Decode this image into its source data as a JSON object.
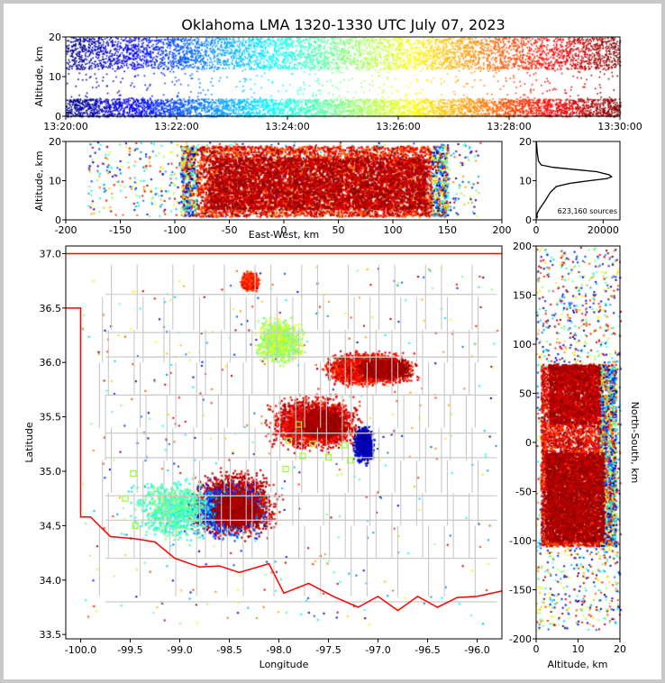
{
  "title": "Oklahoma LMA 1320-1330 UTC July 07, 2023",
  "panels": {
    "time": {
      "ylabel": "Altitude, km",
      "yticks": [
        "0",
        "10",
        "20"
      ],
      "xticks": [
        "13:20:00",
        "13:22:00",
        "13:24:00",
        "13:26:00",
        "13:28:00",
        "13:30:00"
      ]
    },
    "ew": {
      "xlabel": "East-West, km",
      "ylabel": "Altitude, km",
      "xticks": [
        "-200",
        "-150",
        "-100",
        "-50",
        "0",
        "50",
        "100",
        "150",
        "200"
      ],
      "yticks": [
        "0",
        "10",
        "20"
      ]
    },
    "hist": {
      "xticks": [
        "0",
        "20000"
      ],
      "yticks": [
        "0",
        "10",
        "20"
      ],
      "count_label": "623,160 sources"
    },
    "map": {
      "xlabel": "Longitude",
      "ylabel": "Latitude",
      "xticks": [
        "-100.0",
        "-99.5",
        "-99.0",
        "-98.5",
        "-98.0",
        "-97.5",
        "-97.0",
        "-96.5",
        "-96.0"
      ],
      "yticks": [
        "33.5",
        "34.0",
        "34.5",
        "35.0",
        "35.5",
        "36.0",
        "36.5",
        "37.0"
      ]
    },
    "ns": {
      "xlabel": "Altitude, km",
      "ylabel": "North-South, km",
      "xticks": [
        "0",
        "10",
        "20"
      ],
      "yticks": [
        "-200",
        "-150",
        "-100",
        "-50",
        "0",
        "50",
        "100",
        "150",
        "200"
      ]
    }
  },
  "colors": {
    "state_border": "#ff0000",
    "county_lines": "#c8c8c8",
    "station_marker": "#99ff33",
    "colormap": "jet"
  },
  "chart_data": [
    {
      "type": "scatter",
      "name_ref": "time-height",
      "xlabel": "",
      "ylabel": "Altitude, km",
      "xlim": [
        "13:20:00",
        "13:30:00"
      ],
      "ylim": [
        0,
        20
      ],
      "color_by": "time",
      "colormap": "jet",
      "grid": true,
      "density": "uniform over time; dense below 4 km and above 12 km, sparse near 8 km"
    },
    {
      "type": "scatter",
      "name_ref": "east-west-height",
      "xlabel": "East-West, km",
      "ylabel": "Altitude, km",
      "xlim": [
        -200,
        200
      ],
      "ylim": [
        0,
        20
      ],
      "color_by": "time",
      "colormap": "jet",
      "clusters": [
        {
          "x_range": [
            -95,
            150
          ],
          "y_range": [
            1,
            19
          ],
          "density": "very high"
        },
        {
          "x_range": [
            -200,
            -95
          ],
          "y_range": [
            1,
            20
          ],
          "density": "low"
        },
        {
          "x_range": [
            150,
            190
          ],
          "y_range": [
            2,
            20
          ],
          "density": "low"
        }
      ]
    },
    {
      "type": "line",
      "name_ref": "altitude-histogram",
      "xlabel": "",
      "ylabel": "",
      "xlim": [
        0,
        25000
      ],
      "ylim": [
        0,
        20
      ],
      "points": [
        [
          60,
          20
        ],
        [
          150,
          19
        ],
        [
          350,
          17
        ],
        [
          700,
          15
        ],
        [
          1500,
          14
        ],
        [
          5000,
          13.4
        ],
        [
          12000,
          12.8
        ],
        [
          18000,
          12.3
        ],
        [
          21800,
          11.5
        ],
        [
          22500,
          11
        ],
        [
          21000,
          10.5
        ],
        [
          16000,
          10
        ],
        [
          10000,
          9.3
        ],
        [
          6000,
          8.5
        ],
        [
          4200,
          7
        ],
        [
          3500,
          6
        ],
        [
          2800,
          5
        ],
        [
          2000,
          4
        ],
        [
          1200,
          3
        ],
        [
          500,
          2
        ],
        [
          200,
          1.2
        ],
        [
          350,
          0.8
        ],
        [
          150,
          0.4
        ]
      ],
      "annotation": "623,160 sources"
    },
    {
      "type": "scatter",
      "name_ref": "plan-view-map",
      "xlabel": "Longitude",
      "ylabel": "Latitude",
      "xlim": [
        -100.15,
        -95.75
      ],
      "ylim": [
        33.46,
        37.07
      ],
      "color_by": "time",
      "colormap": "jet",
      "clusters": [
        {
          "lon": -98.45,
          "lat": 34.7,
          "lon_spread": 0.5,
          "lat_spread": 0.35,
          "time": 0.95
        },
        {
          "lon": -97.65,
          "lat": 35.45,
          "lon_spread": 0.55,
          "lat_spread": 0.3,
          "time": 0.9
        },
        {
          "lon": -97.1,
          "lat": 35.95,
          "lon_spread": 0.55,
          "lat_spread": 0.18,
          "time": 0.88
        },
        {
          "lon": -98.55,
          "lat": 34.65,
          "lon_spread": 0.5,
          "lat_spread": 0.3,
          "time": 0.2
        },
        {
          "lon": -99.05,
          "lat": 34.65,
          "lon_spread": 0.5,
          "lat_spread": 0.35,
          "time": 0.45
        },
        {
          "lon": -98.0,
          "lat": 36.2,
          "lon_spread": 0.3,
          "lat_spread": 0.25,
          "time": 0.55
        },
        {
          "lon": -98.3,
          "lat": 36.75,
          "lon_spread": 0.1,
          "lat_spread": 0.1,
          "time": 0.85
        },
        {
          "lon": -97.15,
          "lat": 35.25,
          "lon_spread": 0.12,
          "lat_spread": 0.2,
          "time": 0.05
        }
      ],
      "stations": [
        [
          -99.47,
          34.98
        ],
        [
          -99.55,
          34.75
        ],
        [
          -99.45,
          34.5
        ],
        [
          -97.9,
          35.28
        ],
        [
          -97.93,
          35.02
        ],
        [
          -97.76,
          35.14
        ],
        [
          -97.66,
          35.25
        ],
        [
          -97.5,
          35.13
        ],
        [
          -97.34,
          35.24
        ],
        [
          -97.28,
          35.1
        ],
        [
          -97.8,
          35.43
        ]
      ]
    },
    {
      "type": "scatter",
      "name_ref": "north-south-height",
      "xlabel": "Altitude, km",
      "ylabel": "North-South, km",
      "xlim": [
        0,
        20
      ],
      "ylim": [
        -200,
        200
      ],
      "color_by": "time",
      "colormap": "jet",
      "clusters": [
        {
          "y_range": [
            -105,
            80
          ],
          "x_range": [
            0,
            20
          ],
          "density": "very high"
        },
        {
          "y_range": [
            80,
            200
          ],
          "x_range": [
            0,
            20
          ],
          "density": "moderate"
        },
        {
          "y_range": [
            -190,
            -105
          ],
          "x_range": [
            0,
            20
          ],
          "density": "low"
        }
      ]
    }
  ]
}
